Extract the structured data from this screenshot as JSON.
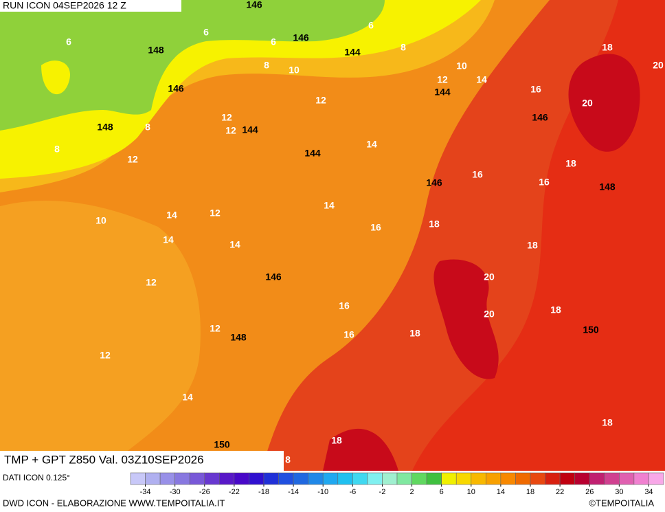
{
  "header": {
    "run": "RUN ICON 04SEP2026 12 Z",
    "product": "TMP + GPT Z850 Val. 03Z10SEP2026"
  },
  "temperature_labels": [
    6,
    6,
    6,
    6,
    8,
    8,
    10,
    10,
    12,
    14,
    12,
    12,
    12,
    8,
    8,
    12,
    14,
    16,
    18,
    20,
    20,
    18,
    16,
    16,
    14,
    16,
    18,
    12,
    14,
    14,
    14,
    10,
    12,
    18,
    20,
    20,
    16,
    16,
    18,
    18,
    12,
    12,
    14,
    18,
    18,
    8
  ],
  "geopotential_labels": [
    146,
    148,
    146,
    144,
    146,
    148,
    144,
    144,
    144,
    146,
    146,
    148,
    146,
    148,
    150,
    150
  ],
  "colorbar": {
    "range": [
      -36,
      36
    ],
    "ticks": [
      -34,
      -30,
      -26,
      -22,
      -18,
      -14,
      -10,
      -6,
      -2,
      2,
      6,
      10,
      14,
      18,
      22,
      26,
      30,
      34
    ],
    "colors": [
      "#c8c8f8",
      "#b0b0f0",
      "#9890e8",
      "#8878e0",
      "#7858d8",
      "#6838d0",
      "#5818c8",
      "#4808c8",
      "#3010d0",
      "#2030d8",
      "#2050e0",
      "#2068e0",
      "#2088e8",
      "#20a8f0",
      "#20c0f0",
      "#40d8f0",
      "#80f0f0",
      "#a0f0d0",
      "#80e8a0",
      "#60d860",
      "#40c040",
      "#f0f000",
      "#f8d800",
      "#f8b800",
      "#f8a000",
      "#f88800",
      "#f06a00",
      "#e84810",
      "#d82010",
      "#c00010",
      "#b80030",
      "#c02070",
      "#d04090",
      "#e060b0",
      "#f080d0",
      "#f8a8e8"
    ]
  },
  "footer": {
    "source": "DATI ICON 0.125°",
    "credits": "DWD ICON - ELABORAZIONE WWW.TEMPOITALIA.IT",
    "copyright": "©TEMPOITALIA"
  }
}
